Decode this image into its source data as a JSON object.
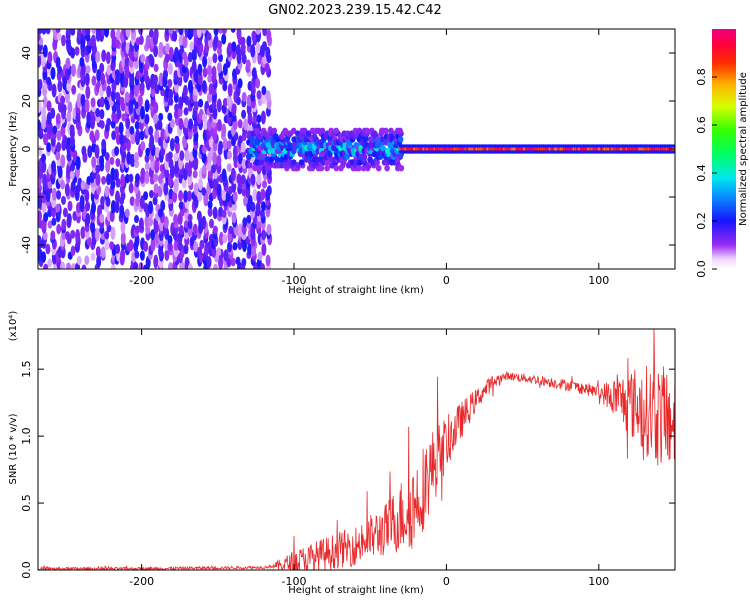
{
  "figure": {
    "title": "GN02.2023.239.15.42.C42"
  },
  "chart_data": [
    {
      "type": "heatmap",
      "description_of_pattern": "broadband scattered energy for x < -120 km, a diffuse band near 0 Hz between -130 and -30 km, and a narrow strong line at 0 Hz for x > -30 km",
      "xlabel": "Height of straight line (km)",
      "ylabel": "Frequency (Hz)",
      "xlim": [
        -268,
        150
      ],
      "ylim": [
        -50,
        50
      ],
      "xticks": [
        -200,
        -100,
        0,
        100
      ],
      "xtick_labels": [
        "-200",
        "-100",
        "0",
        "100"
      ],
      "yticks": [
        -40,
        -20,
        0,
        20,
        40
      ],
      "ytick_labels": [
        "-40",
        "-20",
        "0",
        "20",
        "40"
      ],
      "colorbar": {
        "label": "Normalized spectral amplitude",
        "range": [
          0,
          1
        ],
        "ticks": [
          0.0,
          0.2,
          0.4,
          0.6,
          0.8
        ],
        "tick_labels": [
          "0.0",
          "0.2",
          "0.4",
          "0.6",
          "0.8"
        ],
        "colormap": "gist_ncar-like (white, violet, blue, cyan, green, yellow, orange, red, magenta)"
      },
      "regions": [
        {
          "x": [
            -268,
            -115
          ],
          "freq_band": [
            -50,
            50
          ],
          "amplitude": [
            0.05,
            0.2
          ]
        },
        {
          "x": [
            -130,
            -30
          ],
          "freq_band": [
            -8,
            8
          ],
          "amplitude": [
            0.1,
            0.45
          ]
        },
        {
          "x": [
            -30,
            150
          ],
          "freq_band": [
            -1,
            1
          ],
          "amplitude": [
            0.8,
            1.0
          ]
        }
      ],
      "grid": false
    },
    {
      "type": "line",
      "xlabel": "Height of straight line (km)",
      "ylabel": "SNR (10 * v/v)",
      "y_multiplier_label": "(x10⁴)",
      "xlim": [
        -268,
        150
      ],
      "ylim": [
        0,
        1.8
      ],
      "xticks": [
        -200,
        -100,
        0,
        100
      ],
      "xtick_labels": [
        "-200",
        "-100",
        "0",
        "100"
      ],
      "yticks": [
        0.0,
        0.5,
        1.0,
        1.5
      ],
      "ytick_labels": [
        "0.0",
        "0.5",
        "1.0",
        "1.5"
      ],
      "series": [
        {
          "color": "#e8282a",
          "trend_x": [
            -268,
            -200,
            -120,
            -100,
            -80,
            -60,
            -40,
            -20,
            -10,
            0,
            10,
            20,
            30,
            40,
            60,
            80,
            100,
            120,
            140,
            150
          ],
          "trend_y": [
            0.01,
            0.01,
            0.02,
            0.05,
            0.12,
            0.18,
            0.3,
            0.5,
            0.75,
            0.95,
            1.12,
            1.28,
            1.4,
            1.45,
            1.42,
            1.38,
            1.33,
            1.25,
            1.15,
            1.1
          ],
          "noise_amplitude_x": [
            -268,
            -115,
            -100,
            -60,
            -40,
            -20,
            -10,
            0,
            20,
            40,
            100,
            110,
            125,
            140,
            150
          ],
          "noise_amplitude_y": [
            0.01,
            0.01,
            0.1,
            0.15,
            0.2,
            0.35,
            0.3,
            0.2,
            0.08,
            0.03,
            0.05,
            0.15,
            0.3,
            0.4,
            0.35
          ]
        }
      ],
      "grid": false
    }
  ]
}
